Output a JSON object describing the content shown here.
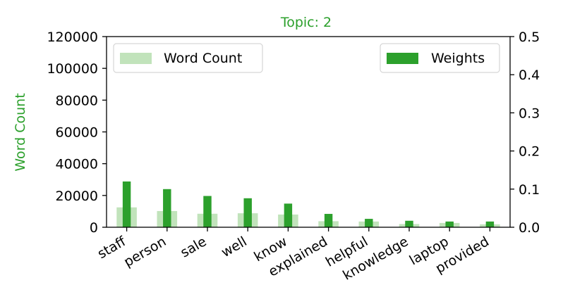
{
  "chart_data": {
    "type": "bar",
    "title": "Topic: 2",
    "xlabel": "",
    "ylabel": "Word Count",
    "y2label": "",
    "categories": [
      "staff",
      "person",
      "sale",
      "well",
      "know",
      "explained",
      "helpful",
      "knowledge",
      "laptop",
      "provided"
    ],
    "series": [
      {
        "name": "Word Count",
        "axis": "left",
        "color": "#c1e3bb",
        "values": [
          12500,
          10200,
          8500,
          8800,
          8000,
          3800,
          3600,
          2000,
          2700,
          1800
        ]
      },
      {
        "name": "Weights",
        "axis": "right",
        "color": "#2ca02c",
        "values": [
          0.12,
          0.1,
          0.082,
          0.076,
          0.062,
          0.035,
          0.022,
          0.017,
          0.015,
          0.015
        ]
      }
    ],
    "ylim": [
      0,
      120000
    ],
    "y2lim": [
      0,
      0.5
    ],
    "yticks": [
      "0",
      "20000",
      "40000",
      "60000",
      "80000",
      "100000",
      "120000"
    ],
    "y2ticks": [
      "0.0",
      "0.1",
      "0.2",
      "0.3",
      "0.4",
      "0.5"
    ],
    "legend_placement": [
      "upper-left",
      "upper-right"
    ],
    "grid": false
  },
  "style": {
    "title_color": "#2ca02c",
    "ylabel_color": "#2ca02c",
    "axis_color": "#000000"
  }
}
